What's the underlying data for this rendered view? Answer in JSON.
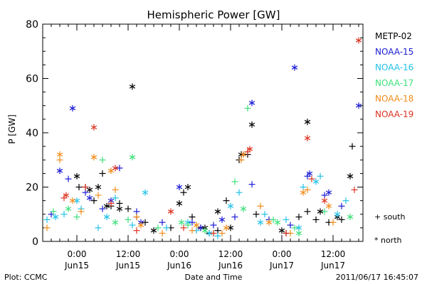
{
  "chart_data": {
    "type": "scatter",
    "title": "Hemispheric Power [GW]",
    "ylabel": "P [GW]",
    "xlabel": "Date and Time",
    "ylim": [
      0,
      80
    ],
    "yticks": [
      0,
      20,
      40,
      60,
      80
    ],
    "xlim": [
      "2011-06-14 16:00",
      "2011-06-17 19:00"
    ],
    "xticks": [
      {
        "t": "2011-06-15 00:00",
        "time": "0:00",
        "date": "Jun15"
      },
      {
        "t": "2011-06-15 12:00",
        "time": "12:00",
        "date": "Jun15"
      },
      {
        "t": "2011-06-16 00:00",
        "time": "0:00",
        "date": "Jun16"
      },
      {
        "t": "2011-06-16 12:00",
        "time": "12:00",
        "date": "Jun16"
      },
      {
        "t": "2011-06-17 00:00",
        "time": "0:00",
        "date": "Jun17"
      },
      {
        "t": "2011-06-17 12:00",
        "time": "12:00",
        "date": "Jun17"
      }
    ],
    "legend_position": "right",
    "marker_legend": {
      "south": "+ south",
      "north": "* north"
    },
    "series": [
      {
        "name": "METP-02",
        "color": "#000000",
        "south": [
          [
            "2011-06-15 00:30",
            20
          ],
          [
            "2011-06-15 02:00",
            20
          ],
          [
            "2011-06-15 04:00",
            15
          ],
          [
            "2011-06-15 06:00",
            25
          ],
          [
            "2011-06-15 08:00",
            13
          ],
          [
            "2011-06-15 10:00",
            14
          ],
          [
            "2011-06-15 12:00",
            12
          ],
          [
            "2011-06-15 14:00",
            9
          ],
          [
            "2011-06-15 16:00",
            7
          ],
          [
            "2011-06-15 22:00",
            5
          ],
          [
            "2011-06-16 01:00",
            18
          ],
          [
            "2011-06-16 03:00",
            9
          ],
          [
            "2011-06-16 05:00",
            5
          ],
          [
            "2011-06-16 07:00",
            3
          ],
          [
            "2011-06-16 09:00",
            4
          ],
          [
            "2011-06-16 11:00",
            15
          ],
          [
            "2011-06-16 14:00",
            30
          ],
          [
            "2011-06-16 16:00",
            32
          ],
          [
            "2011-06-16 18:00",
            10
          ],
          [
            "2011-06-17 01:00",
            3
          ],
          [
            "2011-06-17 04:00",
            9
          ],
          [
            "2011-06-17 06:00",
            11
          ],
          [
            "2011-06-17 08:00",
            8
          ],
          [
            "2011-06-17 11:00",
            7
          ],
          [
            "2011-06-17 14:00",
            8
          ],
          [
            "2011-06-17 16:30",
            35
          ]
        ],
        "north": [
          [
            "2011-06-15 00:00",
            24
          ],
          [
            "2011-06-15 03:00",
            19
          ],
          [
            "2011-06-15 05:00",
            20
          ],
          [
            "2011-06-15 07:00",
            13
          ],
          [
            "2011-06-15 10:00",
            12
          ],
          [
            "2011-06-15 13:00",
            57
          ],
          [
            "2011-06-15 18:00",
            4
          ],
          [
            "2011-06-16 00:00",
            14
          ],
          [
            "2011-06-16 02:00",
            20
          ],
          [
            "2011-06-16 06:00",
            5
          ],
          [
            "2011-06-16 09:00",
            11
          ],
          [
            "2011-06-16 12:00",
            5
          ],
          [
            "2011-06-16 14:30",
            32
          ],
          [
            "2011-06-16 17:00",
            43
          ],
          [
            "2011-06-17 00:00",
            4
          ],
          [
            "2011-06-17 06:00",
            44
          ],
          [
            "2011-06-17 09:00",
            11
          ],
          [
            "2011-06-17 13:00",
            9
          ],
          [
            "2011-06-17 16:00",
            24
          ]
        ]
      },
      {
        "name": "NOAA-15",
        "color": "#1a1ad6",
        "south": [
          [
            "2011-06-14 18:00",
            10
          ],
          [
            "2011-06-14 22:00",
            23
          ],
          [
            "2011-06-15 02:00",
            18
          ],
          [
            "2011-06-15 06:00",
            12
          ],
          [
            "2011-06-15 10:00",
            27
          ],
          [
            "2011-06-15 14:00",
            11
          ],
          [
            "2011-06-15 20:00",
            7
          ],
          [
            "2011-06-16 03:00",
            7
          ],
          [
            "2011-06-16 08:00",
            6
          ],
          [
            "2011-06-16 13:00",
            9
          ],
          [
            "2011-06-16 17:00",
            21
          ],
          [
            "2011-06-16 21:00",
            8
          ],
          [
            "2011-06-17 02:00",
            6
          ],
          [
            "2011-06-17 06:00",
            24
          ],
          [
            "2011-06-17 10:00",
            17
          ],
          [
            "2011-06-17 14:00",
            13
          ]
        ],
        "north": [
          [
            "2011-06-14 20:00",
            26
          ],
          [
            "2011-06-14 23:00",
            49
          ],
          [
            "2011-06-15 03:00",
            16
          ],
          [
            "2011-06-15 08:00",
            15
          ],
          [
            "2011-06-15 15:00",
            7
          ],
          [
            "2011-06-16 00:00",
            20
          ],
          [
            "2011-06-16 05:00",
            5
          ],
          [
            "2011-06-16 10:00",
            8
          ],
          [
            "2011-06-16 17:00",
            51
          ],
          [
            "2011-06-17 03:00",
            64
          ],
          [
            "2011-06-17 06:30",
            25
          ],
          [
            "2011-06-17 11:00",
            18
          ],
          [
            "2011-06-17 18:00",
            50
          ]
        ]
      },
      {
        "name": "NOAA-16",
        "color": "#22c2e8",
        "south": [
          [
            "2011-06-14 17:00",
            8
          ],
          [
            "2011-06-14 21:00",
            10
          ],
          [
            "2011-06-15 01:00",
            12
          ],
          [
            "2011-06-15 05:00",
            5
          ],
          [
            "2011-06-15 09:00",
            16
          ],
          [
            "2011-06-15 13:00",
            6
          ],
          [
            "2011-06-15 21:00",
            5
          ],
          [
            "2011-06-16 04:00",
            4
          ],
          [
            "2011-06-16 09:00",
            2
          ],
          [
            "2011-06-16 14:00",
            18
          ],
          [
            "2011-06-16 20:00",
            10
          ],
          [
            "2011-06-17 01:00",
            8
          ],
          [
            "2011-06-17 05:00",
            20
          ],
          [
            "2011-06-17 09:00",
            24
          ],
          [
            "2011-06-17 15:00",
            15
          ]
        ],
        "north": [
          [
            "2011-06-14 19:00",
            9
          ],
          [
            "2011-06-15 00:00",
            15
          ],
          [
            "2011-06-15 07:00",
            9
          ],
          [
            "2011-06-15 16:00",
            18
          ],
          [
            "2011-06-16 02:00",
            7
          ],
          [
            "2011-06-16 07:00",
            3
          ],
          [
            "2011-06-16 12:00",
            13
          ],
          [
            "2011-06-16 19:00",
            7
          ],
          [
            "2011-06-17 04:00",
            5
          ],
          [
            "2011-06-17 08:00",
            22
          ],
          [
            "2011-06-17 13:00",
            10
          ]
        ]
      },
      {
        "name": "NOAA-17",
        "color": "#3ee07a",
        "south": [
          [
            "2011-06-14 18:30",
            11
          ],
          [
            "2011-06-15 00:00",
            9
          ],
          [
            "2011-06-15 06:00",
            30
          ],
          [
            "2011-06-15 12:00",
            8
          ],
          [
            "2011-06-15 19:00",
            5
          ],
          [
            "2011-06-16 02:00",
            6
          ],
          [
            "2011-06-16 08:00",
            3
          ],
          [
            "2011-06-16 13:00",
            22
          ],
          [
            "2011-06-16 16:00",
            49
          ],
          [
            "2011-06-16 22:00",
            8
          ],
          [
            "2011-06-17 03:00",
            5
          ],
          [
            "2011-06-17 10:00",
            11
          ]
        ],
        "north": [
          [
            "2011-06-14 22:00",
            12
          ],
          [
            "2011-06-15 09:00",
            7
          ],
          [
            "2011-06-15 13:00",
            31
          ],
          [
            "2011-06-16 00:30",
            7
          ],
          [
            "2011-06-16 06:00",
            4
          ],
          [
            "2011-06-16 15:00",
            12
          ],
          [
            "2011-06-16 23:00",
            7
          ],
          [
            "2011-06-17 04:00",
            3
          ],
          [
            "2011-06-17 16:00",
            9
          ]
        ]
      },
      {
        "name": "NOAA-18",
        "color": "#f08c1a",
        "south": [
          [
            "2011-06-14 17:00",
            5
          ],
          [
            "2011-06-14 20:00",
            30
          ],
          [
            "2011-06-15 01:00",
            11
          ],
          [
            "2011-06-15 05:00",
            17
          ],
          [
            "2011-06-15 09:00",
            19
          ],
          [
            "2011-06-15 14:00",
            9
          ],
          [
            "2011-06-15 20:00",
            3
          ],
          [
            "2011-06-16 03:00",
            4
          ],
          [
            "2011-06-16 10:00",
            3
          ],
          [
            "2011-06-16 14:30",
            30
          ],
          [
            "2011-06-16 19:00",
            13
          ],
          [
            "2011-06-17 02:00",
            3
          ],
          [
            "2011-06-17 06:00",
            19
          ],
          [
            "2011-06-17 12:00",
            7
          ]
        ],
        "north": [
          [
            "2011-06-14 20:00",
            32
          ],
          [
            "2011-06-14 23:00",
            15
          ],
          [
            "2011-06-15 04:00",
            31
          ],
          [
            "2011-06-15 08:00",
            26
          ],
          [
            "2011-06-15 15:00",
            6
          ],
          [
            "2011-06-16 04:00",
            6
          ],
          [
            "2011-06-16 11:00",
            5
          ],
          [
            "2011-06-16 15:00",
            32
          ],
          [
            "2011-06-16 21:00",
            7
          ],
          [
            "2011-06-17 05:00",
            18
          ],
          [
            "2011-06-17 11:00",
            13
          ]
        ]
      },
      {
        "name": "NOAA-19",
        "color": "#dc3220",
        "south": [
          [
            "2011-06-14 21:00",
            16
          ],
          [
            "2011-06-15 02:00",
            20
          ],
          [
            "2011-06-15 08:00",
            14
          ],
          [
            "2011-06-15 14:00",
            4
          ],
          [
            "2011-06-16 01:00",
            5
          ],
          [
            "2011-06-16 08:00",
            3
          ],
          [
            "2011-06-16 16:00",
            33
          ],
          [
            "2011-06-17 01:00",
            3
          ],
          [
            "2011-06-17 07:00",
            23
          ],
          [
            "2011-06-17 17:00",
            19
          ]
        ],
        "north": [
          [
            "2011-06-14 21:30",
            17
          ],
          [
            "2011-06-15 04:00",
            42
          ],
          [
            "2011-06-15 09:00",
            27
          ],
          [
            "2011-06-15 22:00",
            11
          ],
          [
            "2011-06-16 16:30",
            34
          ],
          [
            "2011-06-17 06:00",
            38
          ],
          [
            "2011-06-17 10:00",
            15
          ],
          [
            "2011-06-17 18:00",
            74
          ]
        ]
      }
    ]
  },
  "footer": {
    "left": "Plot: CCMC",
    "right": "2011/06/17 16:45:07"
  }
}
